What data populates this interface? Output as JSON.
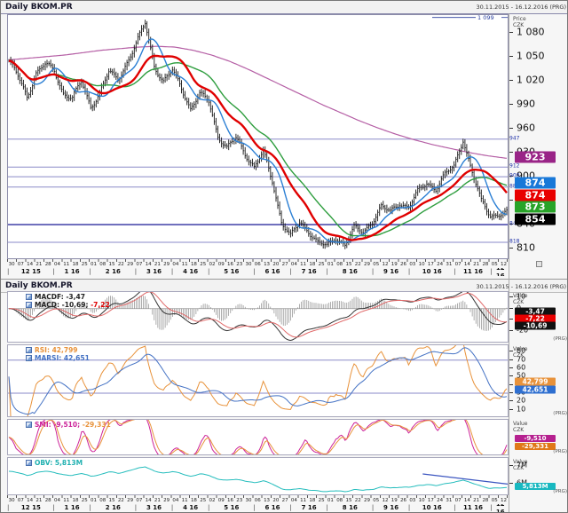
{
  "header": {
    "title": "Daily BKOM.PR",
    "range": "30.11.2015 - 16.12.2016 (PRG)"
  },
  "header2": {
    "title": "Daily BKOM.PR",
    "range": "30.11.2015 - 16.12.2016 (PRG)"
  },
  "y_axis": {
    "price_unit": "Price\nCZK",
    "value_unit": "Value\nCZK",
    "venue_tag": "(PRG)"
  },
  "x_axis": {
    "month_separator": "|",
    "days": [
      "30",
      "07",
      "14",
      "21",
      "28",
      "04",
      "11",
      "18",
      "25",
      "01",
      "08",
      "15",
      "22",
      "29",
      "07",
      "14",
      "21",
      "29",
      "04",
      "11",
      "18",
      "25",
      "02",
      "09",
      "16",
      "23",
      "30",
      "06",
      "13",
      "20",
      "27",
      "04",
      "11",
      "18",
      "25",
      "01",
      "08",
      "15",
      "22",
      "29",
      "05",
      "12",
      "19",
      "26",
      "03",
      "10",
      "17",
      "24",
      "31",
      "07",
      "14",
      "21",
      "28",
      "05",
      "12"
    ],
    "months": [
      {
        "label": "12 15",
        "weeks": 5
      },
      {
        "label": "1 16",
        "weeks": 4
      },
      {
        "label": "2 16",
        "weeks": 5
      },
      {
        "label": "3 16",
        "weeks": 4
      },
      {
        "label": "4 16",
        "weeks": 4
      },
      {
        "label": "5 16",
        "weeks": 5
      },
      {
        "label": "6 16",
        "weeks": 4
      },
      {
        "label": "7 16",
        "weeks": 4
      },
      {
        "label": "8 16",
        "weeks": 5
      },
      {
        "label": "9 16",
        "weeks": 4
      },
      {
        "label": "10 16",
        "weeks": 5
      },
      {
        "label": "11 16",
        "weeks": 4
      },
      {
        "label": "12 16",
        "weeks": 2
      }
    ]
  },
  "chart_data": [
    {
      "id": "price",
      "type": "candlestick",
      "title": "Daily BKOM.PR",
      "ylim": [
        798,
        1102
      ],
      "yticks": [
        {
          "label": "1 080",
          "v": 1080
        },
        {
          "label": "1 050",
          "v": 1050
        },
        {
          "label": "1 020",
          "v": 1020
        },
        {
          "label": "990",
          "v": 990
        },
        {
          "label": "960",
          "v": 960
        },
        {
          "label": "930",
          "v": 930
        },
        {
          "label": "900",
          "v": 900
        },
        {
          "label": "870",
          "v": 870
        },
        {
          "label": "840",
          "v": 840
        },
        {
          "label": "810",
          "v": 810
        }
      ],
      "high_marker": {
        "label": "1 099",
        "v": 1099
      },
      "levels": [
        {
          "label": "947",
          "v": 947
        },
        {
          "label": "912",
          "v": 912
        },
        {
          "label": "900",
          "v": 900
        },
        {
          "label": "887",
          "v": 887
        },
        {
          "label": "840",
          "v": 840,
          "strong": true
        },
        {
          "label": "818",
          "v": 818
        }
      ],
      "level_color": "#8a8ac8",
      "level_strong_color": "#2e2e9e",
      "candle_color": "#151515",
      "weekly_closes": [
        1045,
        1025,
        1000,
        1030,
        1040,
        1032,
        1005,
        998,
        1018,
        988,
        1005,
        1030,
        1022,
        1043,
        1065,
        1092,
        1040,
        1018,
        1032,
        1012,
        985,
        1002,
        995,
        952,
        935,
        948,
        930,
        912,
        930,
        895,
        845,
        825,
        842,
        833,
        818,
        812,
        824,
        816,
        835,
        830,
        845,
        862,
        855,
        868,
        862,
        880,
        892,
        886,
        902,
        912,
        948,
        905,
        868,
        852,
        854
      ],
      "moving_averages": [
        {
          "name": "long-ma",
          "color": "#b55fa5",
          "width": 1.2,
          "anchors": [
            1046,
            1048,
            1050,
            1052,
            1055,
            1058,
            1060,
            1062,
            1063,
            1062,
            1058,
            1052,
            1044,
            1034,
            1023,
            1012,
            1001,
            990,
            980,
            970,
            961,
            953,
            946,
            940,
            935,
            930,
            926,
            923
          ]
        },
        {
          "name": "slow-ma",
          "color": "#2f9e3f",
          "width": 1.4,
          "window": 40
        },
        {
          "name": "fast-ma",
          "color": "#2b7fd4",
          "width": 1.4,
          "window": 12
        },
        {
          "name": "main-ma",
          "color": "#e00000",
          "width": 2.4,
          "window": 26
        }
      ],
      "badges": [
        {
          "label": "923",
          "v": 923,
          "bg": "#992487",
          "dy": 0
        },
        {
          "label": "874",
          "v": 874,
          "bg": "#1878d8",
          "dy": -16
        },
        {
          "label": "874",
          "v": 874,
          "bg": "#e80000",
          "dy": -2
        },
        {
          "label": "873",
          "v": 873,
          "bg": "#28a428",
          "dy": 11
        },
        {
          "label": "854",
          "v": 854,
          "bg": "#000000",
          "dy": 7
        }
      ]
    },
    {
      "id": "macd",
      "type": "line",
      "ylim": [
        -30,
        15
      ],
      "yticks": [
        {
          "label": "10",
          "v": 10
        },
        {
          "label": "0",
          "v": 0
        },
        {
          "label": "-10",
          "v": -10
        },
        {
          "label": "-20",
          "v": -20
        }
      ],
      "legend_rows": [
        {
          "name": "macdf",
          "segments": [
            {
              "text": "MACDF: -3,47",
              "color": "#222222"
            }
          ]
        },
        {
          "name": "macd",
          "segments": [
            {
              "text": "MACD: -10,69; ",
              "color": "#222222"
            },
            {
              "text": "-7,22",
              "color": "#e00000"
            }
          ]
        }
      ],
      "badges": [
        {
          "label": "-3,47",
          "v": -3.47,
          "bg": "#111111"
        },
        {
          "label": "-7,22",
          "v": -7.22,
          "bg": "#e80000"
        },
        {
          "label": "-10,69",
          "v": -10.69,
          "bg": "#111111"
        }
      ],
      "params": {
        "fast": 12,
        "slow": 26,
        "signal": 9,
        "hist_scale": 2.5
      },
      "colors": {
        "macd": "#333333",
        "signal": "#e06868",
        "hist": "#777777",
        "zero": "#aaaaaa"
      }
    },
    {
      "id": "rsi",
      "type": "line",
      "ylim": [
        2,
        88
      ],
      "yticks": [
        {
          "label": "80",
          "v": 80
        },
        {
          "label": "70",
          "v": 70
        },
        {
          "label": "60",
          "v": 60
        },
        {
          "label": "50",
          "v": 50
        },
        {
          "label": "40",
          "v": 40
        },
        {
          "label": "30",
          "v": 30
        },
        {
          "label": "20",
          "v": 20
        },
        {
          "label": "10",
          "v": 10
        }
      ],
      "legend_rows": [
        {
          "name": "rsi",
          "segments": [
            {
              "text": "RSI: 42,799",
              "color": "#e8923a"
            }
          ]
        },
        {
          "name": "marsi",
          "segments": [
            {
              "text": "MARSI: 42,651",
              "color": "#4472c4"
            }
          ]
        }
      ],
      "badges": [
        {
          "label": "42,799",
          "v": 42.799,
          "bg": "#e8923a"
        },
        {
          "label": "42,651",
          "v": 42.651,
          "bg": "#2e6fd0"
        }
      ],
      "guides": [
        70,
        30
      ],
      "guide_color": "#8a8ac8",
      "params": {
        "period": 14,
        "ma": 14
      },
      "colors": {
        "rsi": "#e8923a",
        "marsi": "#4472c4"
      }
    },
    {
      "id": "smi",
      "type": "line",
      "ylim": [
        -75,
        75
      ],
      "yticks": [],
      "legend_rows": [
        {
          "name": "smi",
          "segments": [
            {
              "text": "SMI: -9,510; ",
              "color": "#cc2299"
            },
            {
              "text": "-29,331",
              "color": "#e8923a"
            }
          ]
        }
      ],
      "badges": [
        {
          "label": "-9,510",
          "v": -9.51,
          "bg": "#b5208f"
        },
        {
          "label": "-29,331",
          "v": -29.331,
          "bg": "#e07818"
        }
      ],
      "params": {
        "k": 13,
        "smooth": 4
      },
      "colors": {
        "smi": "#cc2299",
        "signal": "#e8923a"
      }
    },
    {
      "id": "obv",
      "type": "line",
      "ylim": [
        5.4,
        7.45
      ],
      "yticks": [
        {
          "label": "7M",
          "v": 7
        },
        {
          "label": "6M",
          "v": 6
        }
      ],
      "legend_rows": [
        {
          "name": "obv",
          "segments": [
            {
              "text": "OBV: 5,813M",
              "color": "#1fb0b0"
            }
          ]
        }
      ],
      "badges": [
        {
          "label": "5,813M",
          "v": 5.813,
          "bg": "#18b8c0"
        }
      ],
      "range_map": [
        5.55,
        6.95
      ],
      "trendline": {
        "x1": 0.83,
        "v1": 6.55,
        "x2": 1.0,
        "v2": 5.98
      },
      "colors": {
        "obv": "#25bdbd",
        "trend": "#3b55c0"
      }
    }
  ]
}
